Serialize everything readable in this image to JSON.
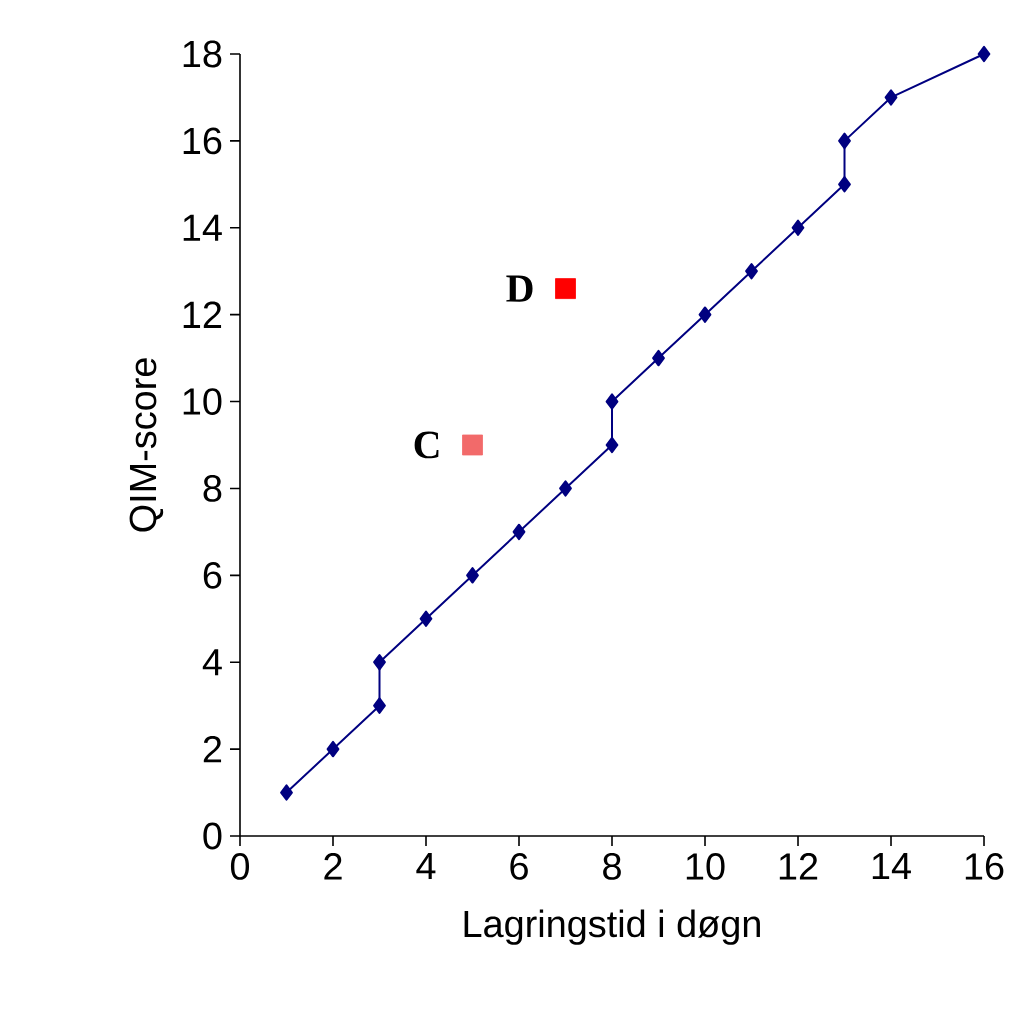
{
  "chart_data": {
    "type": "line",
    "xlabel": "Lagringstid i døgn",
    "ylabel": "QIM-score",
    "xlim": [
      0,
      16
    ],
    "xticks": [
      0,
      2,
      4,
      6,
      8,
      10,
      12,
      14,
      16
    ],
    "ylim": [
      0,
      18
    ],
    "yticks": [
      0,
      2,
      4,
      6,
      8,
      10,
      12,
      14,
      16,
      18
    ],
    "grid": false,
    "marker": "diamond",
    "line_style": "solid",
    "series": [
      {
        "color": "#000080",
        "x": [
          1,
          2,
          3,
          3,
          4,
          5,
          6,
          7,
          8,
          8,
          9,
          10,
          11,
          12,
          13,
          13,
          14,
          16
        ],
        "values": [
          1,
          2,
          3,
          4,
          5,
          6,
          7,
          8,
          9,
          10,
          11,
          12,
          13,
          14,
          15,
          16,
          17,
          18
        ]
      },
      {
        "type": "scatter",
        "marker": "square",
        "colors": [
          "#f26a6a",
          "#ff0000"
        ],
        "x": [
          5,
          7
        ],
        "values": [
          9,
          12.6
        ]
      }
    ],
    "annotations": [
      {
        "text": "C",
        "x": 5,
        "y": 9
      },
      {
        "text": "D",
        "x": 7,
        "y": 12.6
      }
    ]
  }
}
